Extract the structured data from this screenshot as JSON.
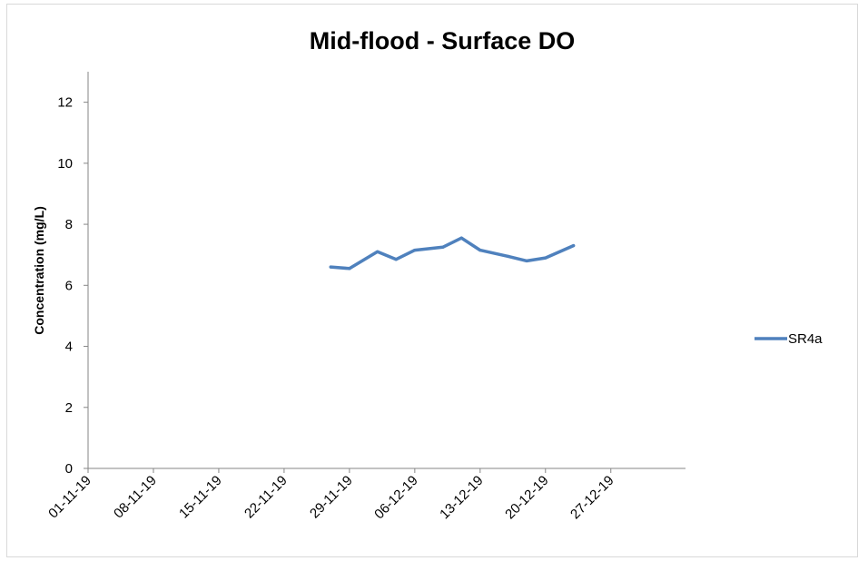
{
  "chart_data": {
    "type": "line",
    "title": "Mid-flood - Surface DO",
    "xlabel": "",
    "ylabel": "Concentration (mg/L)",
    "xlim": [
      "01-11-19",
      "04-01-20"
    ],
    "ylim": [
      0,
      13
    ],
    "x_ticks": [
      "01-11-19",
      "08-11-19",
      "15-11-19",
      "22-11-19",
      "29-11-19",
      "06-12-19",
      "13-12-19",
      "20-12-19",
      "27-12-19"
    ],
    "y_ticks": [
      0,
      2,
      4,
      6,
      8,
      10,
      12
    ],
    "grid": false,
    "legend_position": "right",
    "series": [
      {
        "name": "SR4a",
        "color": "#4f81bd",
        "x": [
          "27-11-19",
          "29-11-19",
          "02-12-19",
          "04-12-19",
          "06-12-19",
          "09-12-19",
          "11-12-19",
          "13-12-19",
          "16-12-19",
          "18-12-19",
          "20-12-19",
          "23-12-19"
        ],
        "y": [
          6.6,
          6.55,
          7.1,
          6.85,
          7.15,
          7.25,
          7.55,
          7.15,
          6.95,
          6.8,
          6.9,
          7.3
        ]
      }
    ]
  }
}
